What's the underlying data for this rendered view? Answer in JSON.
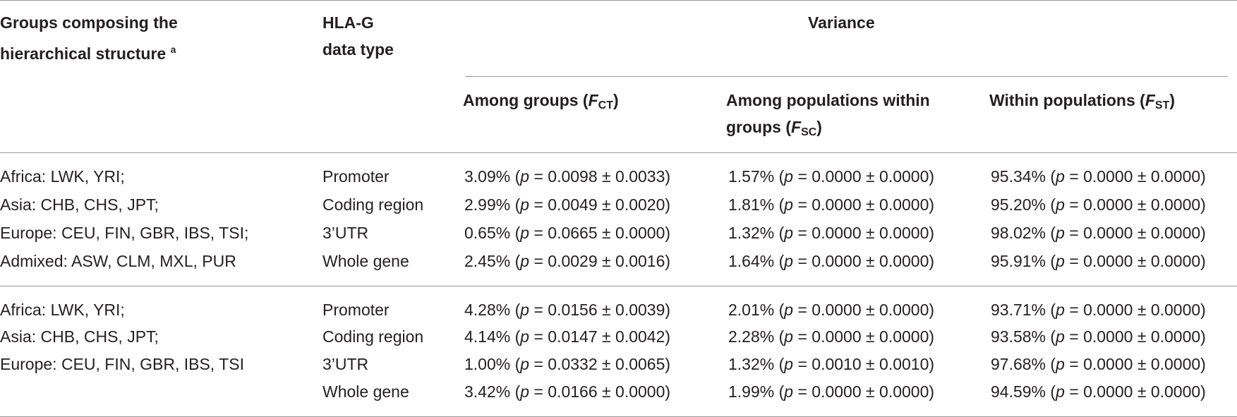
{
  "header": {
    "groups_line1": "Groups composing the",
    "groups_line2": "hierarchical structure",
    "groups_note": "a",
    "datatype_line1": "HLA-G",
    "datatype_line2": "data type",
    "variance": "Variance",
    "among_groups": "Among groups (",
    "among_groups_F": "F",
    "among_groups_sub": "CT",
    "close": ")",
    "among_pop_line1": "Among populations within",
    "among_pop_line2": "groups (",
    "among_pop_F": "F",
    "among_pop_sub": "SC",
    "within_pop": "Within populations (",
    "within_pop_F": "F",
    "within_pop_sub": "ST"
  },
  "sections": [
    {
      "groups": [
        "Africa: LWK, YRI;",
        "Asia: CHB, CHS, JPT;",
        "Europe: CEU, FIN, GBR, IBS, TSI;",
        "Admixed: ASW, CLM, MXL, PUR"
      ],
      "rows": [
        {
          "type": "Promoter",
          "fct": "3.09%",
          "fct_p": "= 0.0098 ± 0.0033)",
          "fsc": "1.57%",
          "fsc_p": "= 0.0000 ± 0.0000)",
          "fst": "95.34%",
          "fst_p": "= 0.0000 ± 0.0000)"
        },
        {
          "type": "Coding region",
          "fct": "2.99%",
          "fct_p": "= 0.0049 ± 0.0020)",
          "fsc": "1.81%",
          "fsc_p": "= 0.0000 ± 0.0000)",
          "fst": "95.20%",
          "fst_p": "= 0.0000 ± 0.0000)"
        },
        {
          "type": "3’UTR",
          "fct": "0.65%",
          "fct_p": "= 0.0665 ± 0.0000)",
          "fsc": "1.32%",
          "fsc_p": "= 0.0000 ± 0.0000)",
          "fst": "98.02%",
          "fst_p": "= 0.0000 ± 0.0000)"
        },
        {
          "type": "Whole gene",
          "fct": "2.45%",
          "fct_p": "= 0.0029 ± 0.0016)",
          "fsc": "1.64%",
          "fsc_p": "= 0.0000 ± 0.0000)",
          "fst": "95.91%",
          "fst_p": "= 0.0000 ± 0.0000)"
        }
      ]
    },
    {
      "groups": [
        "Africa: LWK, YRI;",
        "Asia: CHB, CHS, JPT;",
        "Europe: CEU, FIN, GBR, IBS, TSI"
      ],
      "rows": [
        {
          "type": "Promoter",
          "fct": "4.28%",
          "fct_p": "= 0.0156 ± 0.0039)",
          "fsc": "2.01%",
          "fsc_p": "= 0.0000 ± 0.0000)",
          "fst": "93.71%",
          "fst_p": "= 0.0000 ± 0.0000)"
        },
        {
          "type": "Coding region",
          "fct": "4.14%",
          "fct_p": "= 0.0147 ± 0.0042)",
          "fsc": "2.28%",
          "fsc_p": "= 0.0000 ± 0.0000)",
          "fst": "93.58%",
          "fst_p": "= 0.0000 ± 0.0000)"
        },
        {
          "type": "3’UTR",
          "fct": "1.00%",
          "fct_p": "= 0.0332 ± 0.0065)",
          "fsc": "1.32%",
          "fsc_p": "= 0.0010 ± 0.0010)",
          "fst": "97.68%",
          "fst_p": "= 0.0000 ± 0.0000)"
        },
        {
          "type": "Whole gene",
          "fct": "3.42%",
          "fct_p": "= 0.0166 ± 0.0000)",
          "fsc": "1.99%",
          "fsc_p": "= 0.0000 ± 0.0000)",
          "fst": "94.59%",
          "fst_p": "= 0.0000 ± 0.0000)"
        }
      ]
    }
  ]
}
